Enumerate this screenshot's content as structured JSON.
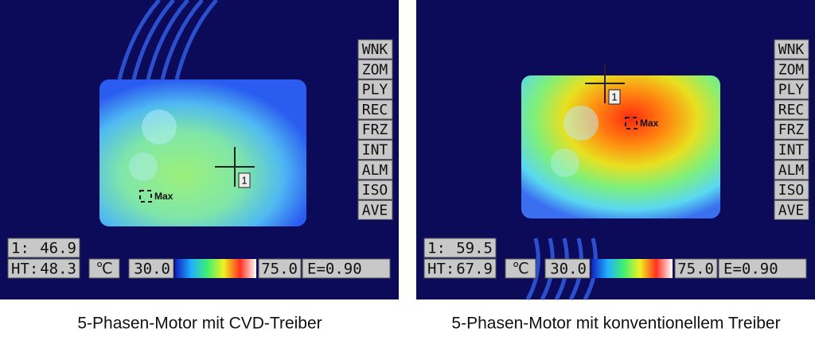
{
  "panels": [
    {
      "menu": [
        "WNK",
        "ZOM",
        "PLY",
        "REC",
        "FRZ",
        "INT",
        "ALM",
        "ISO",
        "AVE"
      ],
      "spot_label": "1:",
      "spot_value": "46.9",
      "ht_label": "HT:",
      "ht_value": "48.3",
      "unit": "℃",
      "scale_min": "30.0",
      "scale_max": "75.0",
      "emissivity": "E=0.90",
      "cursor_label": "1",
      "max_label": "Max",
      "caption": "5-Phasen-Motor mit CVD-Treiber"
    },
    {
      "menu": [
        "WNK",
        "ZOM",
        "PLY",
        "REC",
        "FRZ",
        "INT",
        "ALM",
        "ISO",
        "AVE"
      ],
      "spot_label": "1:",
      "spot_value": "59.5",
      "ht_label": "HT:",
      "ht_value": "67.9",
      "unit": "℃",
      "scale_min": "30.0",
      "scale_max": "75.0",
      "emissivity": "E=0.90",
      "cursor_label": "1",
      "max_label": "Max",
      "caption": "5-Phasen-Motor mit konventionellem Treiber"
    }
  ]
}
